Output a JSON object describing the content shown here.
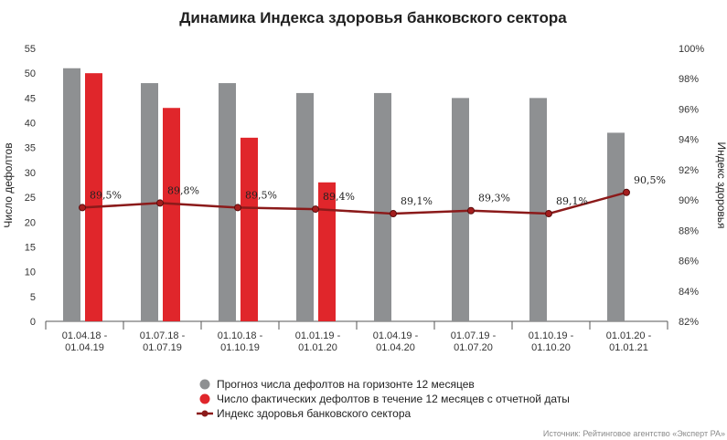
{
  "chart_data": {
    "type": "bar",
    "title": "Динамика Индекса здоровья банковского сектора",
    "ylabel": "Число дефолтов",
    "y2label": "Индекс здоровья",
    "ylim": [
      0,
      55
    ],
    "yticks": [
      "0",
      "5",
      "10",
      "15",
      "20",
      "25",
      "30",
      "35",
      "40",
      "45",
      "50",
      "55"
    ],
    "y2lim": [
      82,
      100
    ],
    "y2ticks": [
      "82%",
      "84%",
      "86%",
      "88%",
      "90%",
      "92%",
      "94%",
      "96%",
      "98%",
      "100%"
    ],
    "categories": [
      [
        "01.04.18 -",
        "01.04.19"
      ],
      [
        "01.07.18 -",
        "01.07.19"
      ],
      [
        "01.10.18 -",
        "01.10.19"
      ],
      [
        "01.01.19 -",
        "01.01.20"
      ],
      [
        "01.04.19 -",
        "01.04.20"
      ],
      [
        "01.07.19 -",
        "01.07.20"
      ],
      [
        "01.10.19 -",
        "01.10.20"
      ],
      [
        "01.01.20 -",
        "01.01.21"
      ]
    ],
    "series": [
      {
        "name": "Прогноз числа дефолтов на горизонте 12 месяцев",
        "kind": "bar",
        "axis": "left",
        "color": "#8e9092",
        "values": [
          51,
          48,
          48,
          46,
          46,
          45,
          45,
          38
        ]
      },
      {
        "name": "Число фактических дефолтов в течение 12 месяцев с отчетной даты",
        "kind": "bar",
        "axis": "left",
        "color": "#e0262b",
        "values": [
          50,
          43,
          37,
          28,
          null,
          null,
          null,
          null
        ]
      },
      {
        "name": "Индекс здоровья банковского сектора",
        "kind": "line",
        "axis": "right",
        "color": "#8b1a1a",
        "values": [
          89.5,
          89.8,
          89.5,
          89.4,
          89.1,
          89.3,
          89.1,
          90.5
        ],
        "labels": [
          "89,5%",
          "89,8%",
          "89,5%",
          "89,4%",
          "89,1%",
          "89,3%",
          "89,1%",
          "90,5%"
        ]
      }
    ],
    "grid": false,
    "legend": "bottom"
  },
  "source": "Источник: Рейтинговое агентство «Эксперт РА»"
}
